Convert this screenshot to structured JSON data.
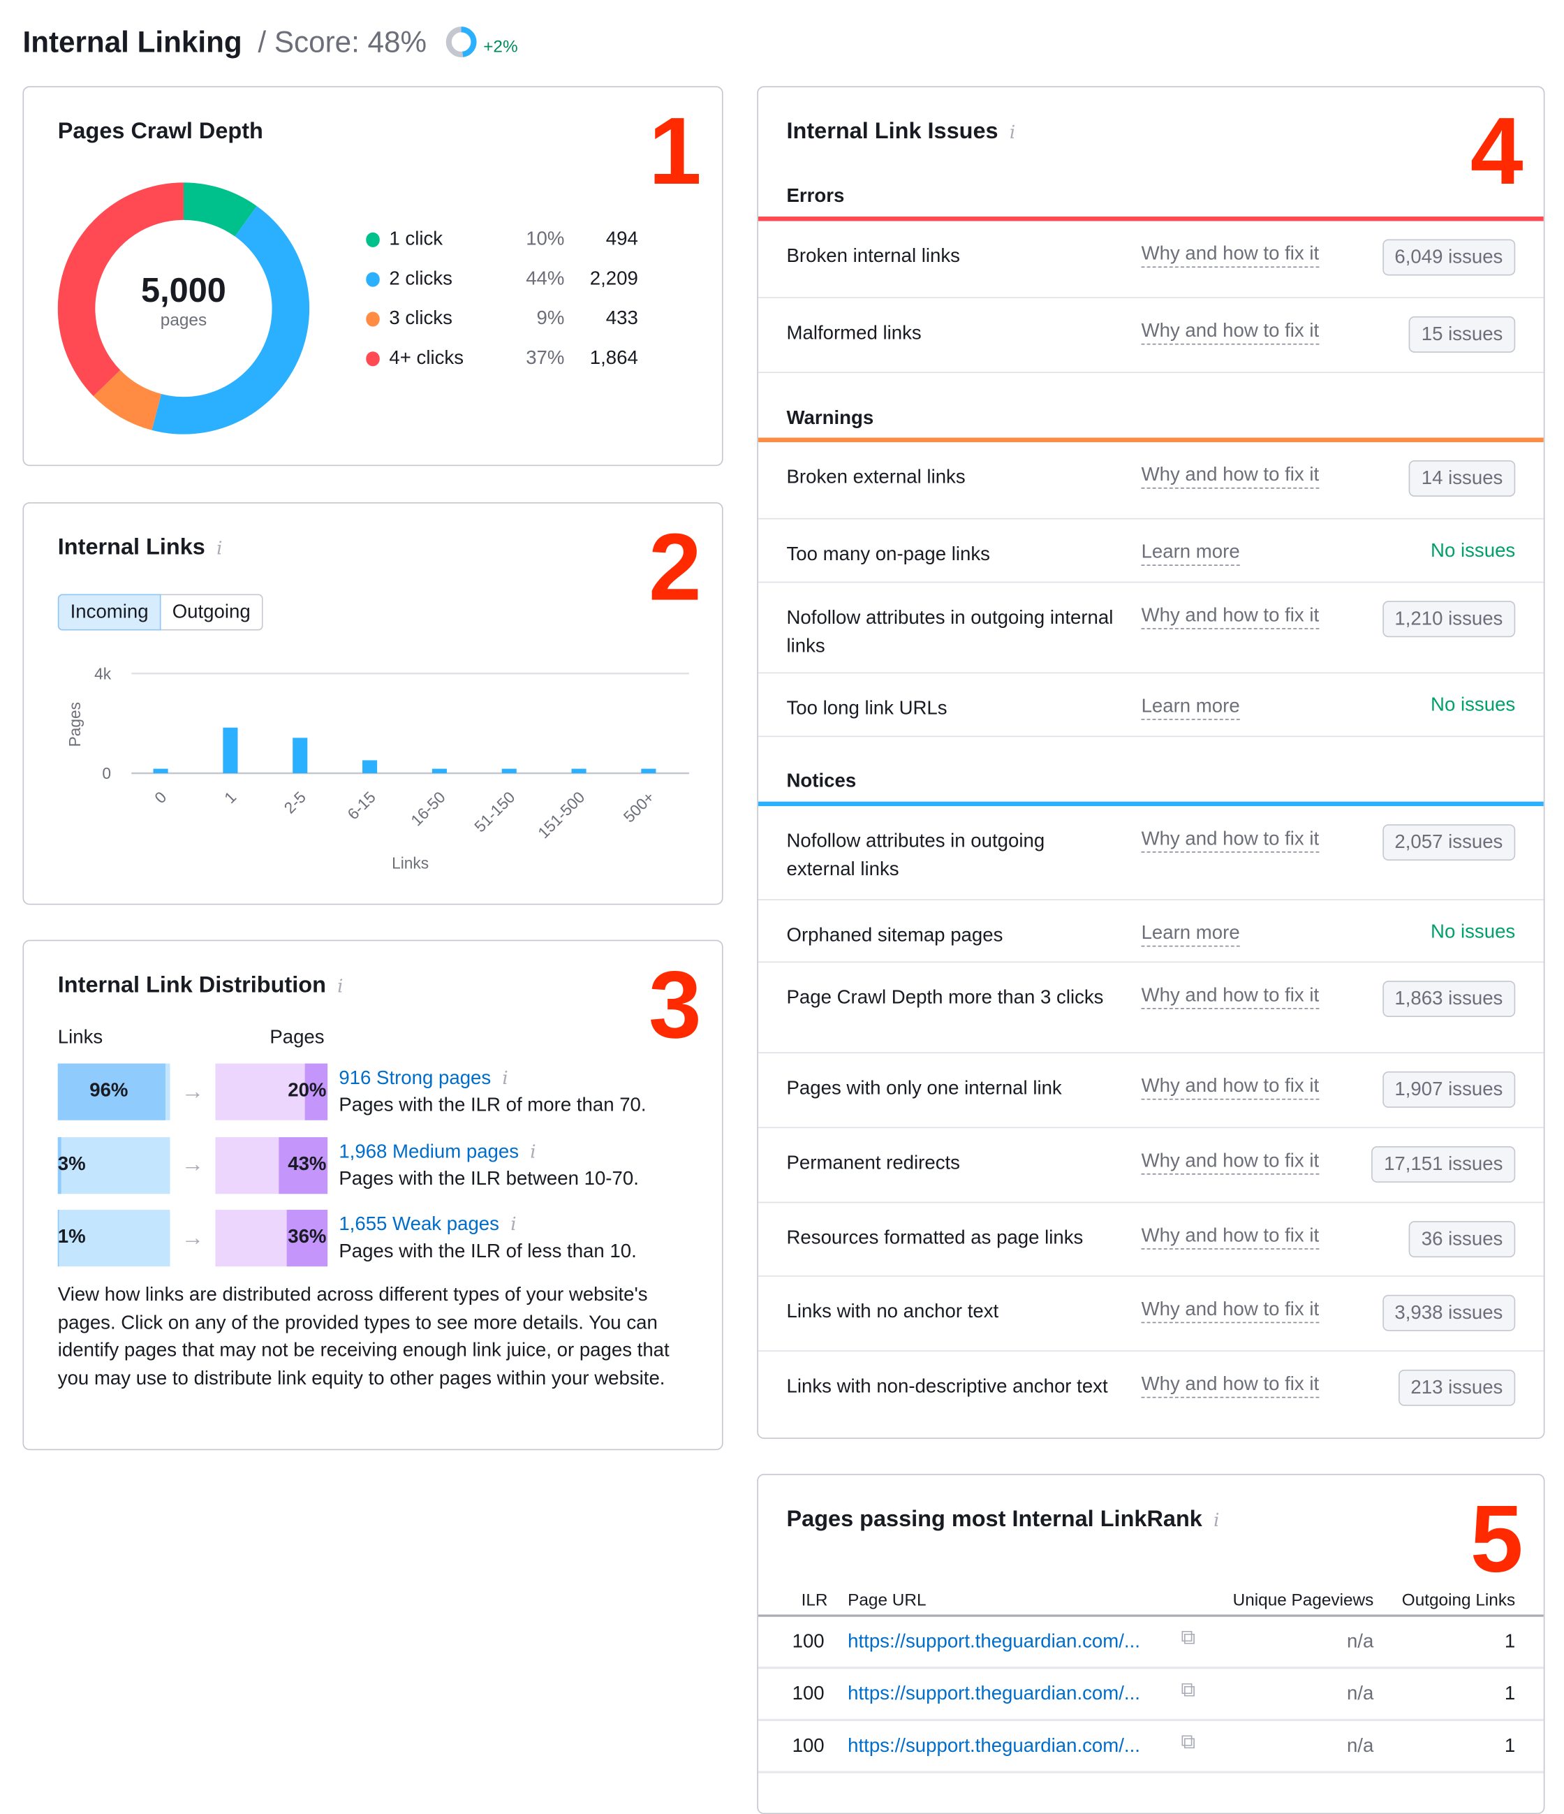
{
  "header": {
    "title": "Internal Linking",
    "score_label": "/ Score: 48%",
    "score_value": 48,
    "score_change": "+2%"
  },
  "colors": {
    "green": "#00c08b",
    "blue": "#2bb0ff",
    "orange": "#ff8c42",
    "red": "#ff4953",
    "link": "#006dca",
    "annotation": "#ff2a00"
  },
  "crawl_depth": {
    "title": "Pages Crawl Depth",
    "marker": "1",
    "total": "5,000",
    "total_label": "pages",
    "items": [
      {
        "label": "1 click",
        "pct": "10%",
        "count": "494",
        "value": 494,
        "color": "#00c08b"
      },
      {
        "label": "2 clicks",
        "pct": "44%",
        "count": "2,209",
        "value": 2209,
        "color": "#2bb0ff"
      },
      {
        "label": "3 clicks",
        "pct": "9%",
        "count": "433",
        "value": 433,
        "color": "#ff8c42"
      },
      {
        "label": "4+ clicks",
        "pct": "37%",
        "count": "1,864",
        "value": 1864,
        "color": "#ff4953"
      }
    ]
  },
  "internal_links": {
    "title": "Internal Links",
    "marker": "2",
    "tabs": [
      {
        "label": "Incoming",
        "active": true
      },
      {
        "label": "Outgoing",
        "active": false
      }
    ]
  },
  "chart_data": {
    "type": "bar",
    "xlabel": "Links",
    "ylabel": "Pages",
    "ylim": [
      0,
      4000
    ],
    "yticks": [
      "0",
      "4k"
    ],
    "grid": true,
    "categories": [
      "0",
      "1",
      "2-5",
      "6-15",
      "16-50",
      "51-150",
      "151-500",
      "500+"
    ],
    "values": [
      180,
      1830,
      1420,
      520,
      180,
      180,
      180,
      180
    ],
    "color": "#2bb0ff"
  },
  "distribution": {
    "title": "Internal Link Distribution",
    "marker": "3",
    "links_header": "Links",
    "pages_header": "Pages",
    "rows": [
      {
        "links_pct": "96%",
        "links_value": 96,
        "pages_pct": "20%",
        "pages_value": 20,
        "title": "916 Strong pages",
        "desc": "Pages with the ILR of more than 70."
      },
      {
        "links_pct": "3%",
        "links_value": 3,
        "pages_pct": "43%",
        "pages_value": 43,
        "title": "1,968 Medium pages",
        "desc": "Pages with the ILR between 10-70."
      },
      {
        "links_pct": "1%",
        "links_value": 1,
        "pages_pct": "36%",
        "pages_value": 36,
        "title": "1,655 Weak pages",
        "desc": "Pages with the ILR of less than 10."
      }
    ],
    "description": "View how links are distributed across different types of your website's pages. Click on any of the provided types to see more details. You can identify pages that may not be receiving enough link juice, or pages that you may use to distribute link equity to other pages within your website."
  },
  "issues": {
    "title": "Internal Link Issues",
    "marker": "4",
    "sections": [
      {
        "name": "Errors",
        "color": "#ff4953",
        "rows": [
          {
            "name": "Broken internal links",
            "link": "Why and how to fix it",
            "status": "6,049 issues"
          },
          {
            "name": "Malformed links",
            "link": "Why and how to fix it",
            "status": "15 issues"
          }
        ]
      },
      {
        "name": "Warnings",
        "color": "#ff8c42",
        "rows": [
          {
            "name": "Broken external links",
            "link": "Why and how to fix it",
            "status": "14 issues"
          },
          {
            "name": "Too many on-page links",
            "link": "Learn more",
            "status": "No issues",
            "ok": true
          },
          {
            "name": "Nofollow attributes in outgoing internal links",
            "link": "Why and how to fix it",
            "status": "1,210 issues"
          },
          {
            "name": "Too long link URLs",
            "link": "Learn more",
            "status": "No issues",
            "ok": true
          }
        ]
      },
      {
        "name": "Notices",
        "color": "#2bb0ff",
        "rows": [
          {
            "name": "Nofollow attributes in outgoing external links",
            "link": "Why and how to fix it",
            "status": "2,057 issues"
          },
          {
            "name": "Orphaned sitemap pages",
            "link": "Learn more",
            "status": "No issues",
            "ok": true
          },
          {
            "name": "Page Crawl Depth more than 3 clicks",
            "link": "Why and how to fix it",
            "status": "1,863 issues"
          },
          {
            "name": "Pages with only one internal link",
            "link": "Why and how to fix it",
            "status": "1,907 issues"
          },
          {
            "name": "Permanent redirects",
            "link": "Why and how to fix it",
            "status": "17,151 issues"
          },
          {
            "name": "Resources formatted as page links",
            "link": "Why and how to fix it",
            "status": "36 issues"
          },
          {
            "name": "Links with no anchor text",
            "link": "Why and how to fix it",
            "status": "3,938 issues"
          },
          {
            "name": "Links with non-descriptive anchor text",
            "link": "Why and how to fix it",
            "status": "213 issues"
          }
        ]
      }
    ]
  },
  "linkrank": {
    "title": "Pages passing most Internal LinkRank",
    "marker": "5",
    "columns": [
      "ILR",
      "Page URL",
      "Unique Pageviews",
      "Outgoing Links"
    ],
    "rows": [
      {
        "ilr": "100",
        "url": "https://support.theguardian.com/...",
        "views": "n/a",
        "out": "1"
      },
      {
        "ilr": "100",
        "url": "https://support.theguardian.com/...",
        "views": "n/a",
        "out": "1"
      },
      {
        "ilr": "100",
        "url": "https://support.theguardian.com/...",
        "views": "n/a",
        "out": "1"
      }
    ]
  }
}
